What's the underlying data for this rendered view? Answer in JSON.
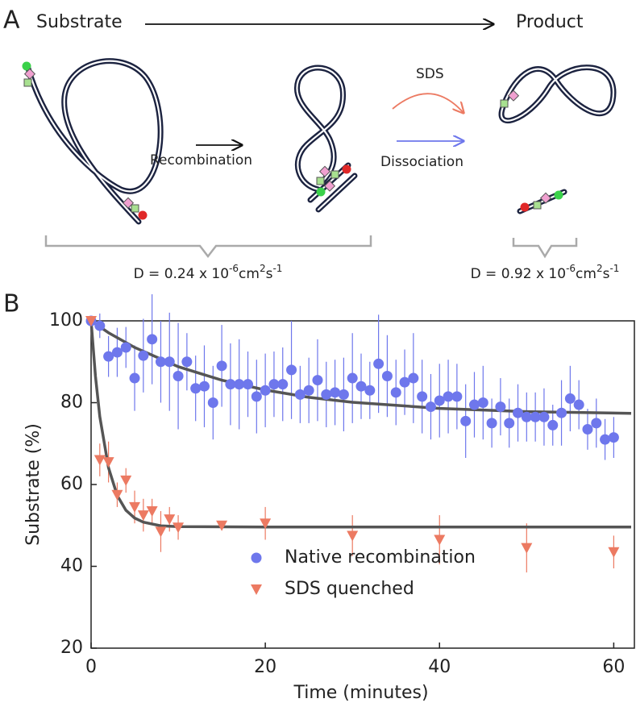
{
  "diagram": {
    "label": "A",
    "substrate": "Substrate",
    "product": "Product",
    "recombination": "Recombination",
    "sds": "SDS",
    "dissociation": "Dissociation",
    "diffusion_left": [
      "D = 0.24 x 10",
      "-6",
      "cm",
      "2",
      "s",
      "-1"
    ],
    "diffusion_right": [
      "D = 0.92 x 10",
      "-6",
      "cm",
      "2",
      "s",
      "-1"
    ]
  },
  "chart_data": {
    "type": "scatter",
    "label": "B",
    "ylabel": "Substrate (%)",
    "xlabel": "Time (minutes)",
    "xlim": [
      0,
      62
    ],
    "ylim": [
      20,
      100
    ],
    "xticks": [
      0,
      20,
      40,
      60
    ],
    "yticks": [
      20,
      40,
      60,
      80,
      100
    ],
    "grid": false,
    "legend": "lower center",
    "series": [
      {
        "name": "Native recombination",
        "color": "#6e77ec",
        "marker": "circle",
        "x": [
          0,
          1,
          2,
          3,
          4,
          5,
          6,
          7,
          8,
          9,
          10,
          11,
          12,
          13,
          14,
          15,
          16,
          17,
          18,
          19,
          20,
          21,
          22,
          23,
          24,
          25,
          26,
          27,
          28,
          29,
          30,
          31,
          32,
          33,
          34,
          35,
          36,
          37,
          38,
          39,
          40,
          41,
          42,
          43,
          44,
          45,
          46,
          47,
          48,
          49,
          50,
          51,
          52,
          53,
          54,
          55,
          56,
          57,
          58,
          59,
          60
        ],
        "values": [
          100,
          98.8,
          91.3,
          92.3,
          93.5,
          86,
          91.5,
          95.5,
          90,
          90,
          86.5,
          90,
          83.5,
          84,
          80,
          89,
          84.5,
          84.5,
          84.5,
          81.5,
          83,
          84.5,
          84.5,
          88,
          82,
          83,
          85.5,
          82,
          82.5,
          82,
          86,
          84,
          83,
          89.5,
          86.5,
          82.5,
          85,
          86,
          81.5,
          79,
          80.5,
          81.5,
          81.5,
          75.5,
          79.5,
          80,
          75,
          79,
          75,
          77.5,
          76.5,
          76.5,
          76.5,
          74.5,
          77.5,
          81,
          79.5,
          73.5,
          75,
          71,
          71.5
        ],
        "errors": [
          0,
          3,
          5,
          6,
          5,
          8,
          9,
          11,
          10,
          12,
          13,
          7,
          8,
          10,
          9,
          10,
          10,
          11,
          8,
          9,
          9,
          8,
          9,
          12,
          7,
          8,
          10,
          8,
          8,
          9,
          11,
          8,
          7,
          12,
          10,
          8,
          8,
          11,
          9,
          8,
          9,
          9,
          8,
          9,
          8,
          9,
          6,
          7,
          6,
          7,
          6,
          6,
          7,
          5,
          8,
          8,
          6,
          5,
          6,
          5,
          5
        ]
      },
      {
        "name": "SDS quenched",
        "color": "#ec7a62",
        "marker": "triangle-down",
        "x": [
          0,
          1,
          2,
          3,
          4,
          5,
          6,
          7,
          8,
          9,
          10,
          15,
          20,
          30,
          40,
          50,
          60
        ],
        "values": [
          100,
          66,
          65.5,
          57.5,
          61,
          54.5,
          52.5,
          53.5,
          48.5,
          51.5,
          49.5,
          50,
          50.5,
          47.5,
          46.5,
          44.5,
          43.5
        ],
        "errors": [
          0,
          4,
          5,
          3,
          3,
          4,
          4,
          3,
          5,
          3,
          3,
          1,
          4,
          5,
          6,
          6,
          4
        ]
      }
    ],
    "fits": [
      {
        "color": "#555555",
        "x": [
          0,
          2,
          5,
          10,
          15,
          20,
          25,
          30,
          40,
          50,
          62
        ],
        "values": [
          100,
          97.1,
          93.5,
          88.8,
          85.5,
          83.1,
          81.3,
          80.1,
          78.6,
          77.8,
          77.4
        ]
      },
      {
        "color": "#555555",
        "x": [
          0,
          0.5,
          1,
          2,
          3,
          4,
          5,
          6,
          8,
          10,
          20,
          62
        ],
        "values": [
          100,
          86.5,
          76.6,
          64.1,
          57.3,
          53.7,
          51.8,
          50.8,
          49.9,
          49.7,
          49.6,
          49.6
        ]
      }
    ]
  }
}
